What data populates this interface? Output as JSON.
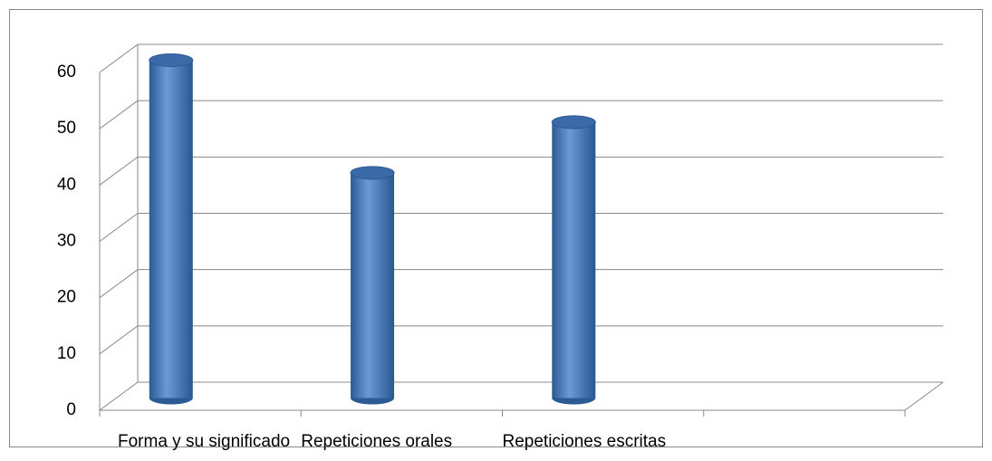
{
  "chart_data": {
    "type": "bar3d",
    "categories": [
      "Forma y su significado",
      "Repeticiones orales",
      "Repeticiones escritas",
      null
    ],
    "values": [
      60,
      40,
      49,
      null
    ],
    "color": "#4a7ebb",
    "ylim": [
      0,
      60
    ],
    "yticks": [
      0,
      10,
      20,
      30,
      40,
      50,
      60
    ],
    "grid": true
  }
}
